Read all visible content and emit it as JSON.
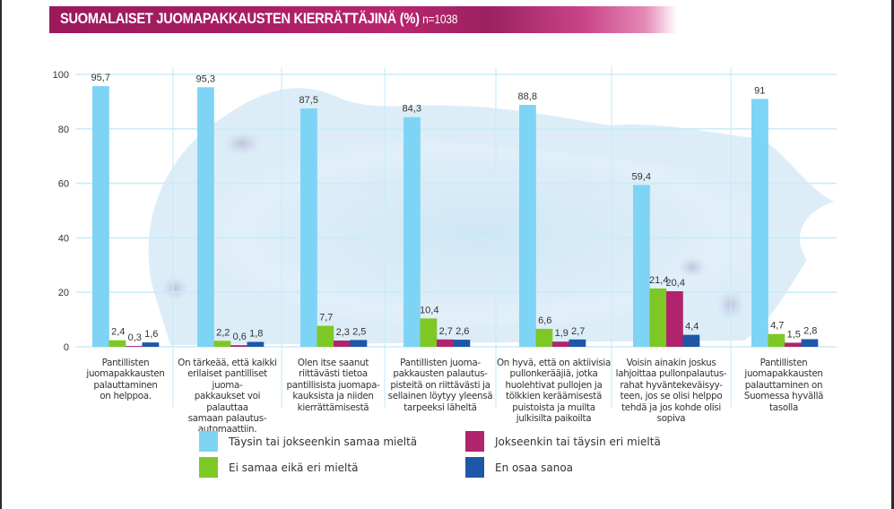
{
  "header": {
    "title": "SUOMALAISET JUOMAPAKKAUSTEN KIERRÄTTÄJINÄ (%)",
    "sample_size": "n=1038"
  },
  "chart_data": {
    "type": "bar",
    "title": "SUOMALAISET JUOMAPAKKAUSTEN KIERRÄTTÄJINÄ (%)",
    "subtitle": "n=1038",
    "xlabel": "",
    "ylabel": "%",
    "ylim": [
      0,
      100
    ],
    "yticks": [
      "0",
      "20",
      "40",
      "60",
      "80",
      "100"
    ],
    "grid": true,
    "legend_position": "bottom",
    "categories": [
      "Pantillisten juomapakkausten palauttaminen on helppoa.",
      "On tärkeää, että kaikki erilaiset pantilliset juomapakkaukset voi palauttaa samaan palautusautomaattiin.",
      "Olen itse saanut riittävästi tietoa pantillisista juomapakkauksista ja niiden kierrättämisestä",
      "Pantillisten juomapakkausten palautuspisteitä on riittävästi ja sellainen löytyy yleensä tarpeeksi läheltä",
      "On hyvä, että on aktiivisia pullonkerääjiä, jotka huolehtivat pullojen ja tölkkien keräämisestä puistoista ja muilta julkisilta paikoilta",
      "Voisin ainakin joskus lahjoittaa pullonpalautusrahat hyväntekeväisyyteen, jos se olisi helppo tehdä ja jos kohde olisi sopiva",
      "Pantillisten juomapakkausten palauttaminen on Suomessa hyvällä tasolla"
    ],
    "category_lines": [
      [
        "Pantillisten",
        "juomapakkausten",
        "palauttaminen",
        "on helppoa."
      ],
      [
        "On tärkeää, että kaikki",
        "erilaiset pantilliset juoma-",
        "pakkaukset voi palauttaa",
        "samaan palautus-",
        "automaattiin."
      ],
      [
        "Olen itse saanut",
        "riittävästi tietoa",
        "pantillisista juomapa-",
        "kauksista ja niiden",
        "kierrättämisestä"
      ],
      [
        "Pantillisten juoma-",
        "pakkausten palautus-",
        "pisteitä on riittävästi ja",
        "sellainen löytyy yleensä",
        "tarpeeksi läheltä"
      ],
      [
        "On hyvä, että on aktiivisia",
        "pullonkerääjiä, jotka",
        "huolehtivat pullojen ja",
        "tölkkien keräämisestä",
        "puistoista ja muilta",
        "julkisilta paikoilta"
      ],
      [
        "Voisin ainakin joskus",
        "lahjoittaa pullonpalautus-",
        "rahat hyväntekeväisyy-",
        "teen, jos se olisi helppo",
        "tehdä ja jos kohde olisi",
        "sopiva"
      ],
      [
        "Pantillisten",
        "juomapakkausten",
        "palauttaminen on",
        "Suomessa hyvällä",
        "tasolla"
      ]
    ],
    "series": [
      {
        "name": "Täysin tai jokseenkin samaa mieltä",
        "color": "#7dd4f5",
        "values": [
          95.7,
          95.3,
          87.5,
          84.3,
          88.8,
          59.4,
          91.0
        ],
        "labels": [
          "95,7",
          "95,3",
          "87,5",
          "84,3",
          "88,8",
          "59,4",
          "91"
        ]
      },
      {
        "name": "Ei samaa eikä eri mieltä",
        "color": "#7ec826",
        "values": [
          2.4,
          2.2,
          7.7,
          10.4,
          6.6,
          21.4,
          4.7
        ],
        "labels": [
          "2,4",
          "2,2",
          "7,7",
          "10,4",
          "6,6",
          "21,4",
          "4,7"
        ]
      },
      {
        "name": "Jokseenkin tai täysin eri mieltä",
        "color": "#b0246d",
        "values": [
          0.3,
          0.6,
          2.3,
          2.7,
          1.9,
          20.4,
          1.5
        ],
        "labels": [
          "0,3",
          "0,6",
          "2,3",
          "2,7",
          "1,9",
          "20,4",
          "1,5"
        ]
      },
      {
        "name": "En osaa sanoa",
        "color": "#1f57a8",
        "values": [
          1.6,
          1.8,
          2.5,
          2.6,
          2.7,
          4.4,
          2.8
        ],
        "labels": [
          "1,6",
          "1,8",
          "2,5",
          "2,6",
          "2,7",
          "4,4",
          "2,8"
        ]
      }
    ]
  },
  "legend": {
    "items": [
      {
        "label": "Täysin tai jokseenkin samaa mieltä",
        "color": "#7dd4f5"
      },
      {
        "label": "Ei samaa eikä eri mieltä",
        "color": "#7ec826"
      },
      {
        "label": "Jokseenkin tai täysin eri mieltä",
        "color": "#b0246d"
      },
      {
        "label": "En osaa sanoa",
        "color": "#1f57a8"
      }
    ]
  }
}
